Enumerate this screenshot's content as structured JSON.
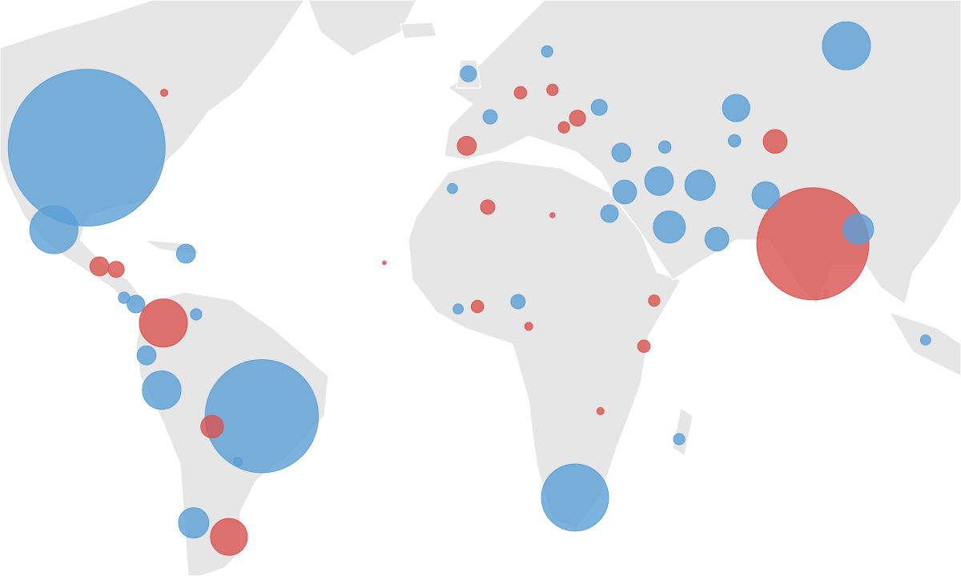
{
  "chart_data": {
    "type": "bubble-map",
    "series": [
      {
        "color": "#5b9fd6",
        "lon": [
          -98.0,
          -106.0,
          87.3,
          -55.3,
          21.1,
          -79.7,
          -71.9,
          -73.8,
          60.4,
          51.6,
          41.6,
          44.1,
          67.6,
          90.2,
          32.4,
          33.2,
          29.5,
          55.7,
          -83.4,
          -71.3,
          27.0,
          -4.9,
          0.4,
          -86.0,
          -88.9,
          46.5,
          7.2,
          -7.4,
          43.0,
          60.0,
          14.3,
          -8.8,
          106.6,
          -61.1
        ],
        "lat": [
          39.0,
          24.6,
          53.5,
          -13.2,
          -28.9,
          -7.9,
          -33.4,
          20.0,
          45.1,
          32.7,
          33.4,
          25.1,
          30.9,
          24.7,
          38.2,
          31.5,
          27.6,
          22.8,
          -0.7,
          7.8,
          45.2,
          49.9,
          43.8,
          9.9,
          11.2,
          -17.8,
          10.4,
          8.9,
          39.1,
          40.1,
          52.8,
          32.1,
          2.5,
          -22.2
        ],
        "values": [
          96,
          9,
          9,
          50,
          17.6,
          5.8,
          3.6,
          1.4,
          2.9,
          3.6,
          3.2,
          4,
          2.9,
          3.6,
          1.4,
          2.2,
          1.2,
          2.2,
          1.4,
          0.5,
          1,
          1,
          0.8,
          1.2,
          0.5,
          0.5,
          0.8,
          0.4,
          0.6,
          0.6,
          0.5,
          0.4,
          0.4,
          0.3
        ]
      },
      {
        "color": "#d9534f",
        "lon": [
          79.1,
          69.9,
          -79.3,
          -63.3,
          -94.9,
          -90.8,
          -5.3,
          -0.2,
          -67.4,
          37.9,
          40.4,
          -2.7,
          21.7,
          7.8,
          15.6,
          18.4,
          -79.1,
          -25.4,
          15.6,
          27.3,
          9.8
        ],
        "lat": [
          21.9,
          40.0,
          6.0,
          -35.8,
          17.5,
          16.9,
          39.3,
          28.8,
          -15.3,
          1.2,
          10.6,
          9.4,
          43.6,
          47.3,
          47.7,
          42.2,
          47.3,
          18.2,
          27.3,
          -12.2,
          5.3
        ],
        "values": [
          49,
          2.2,
          9,
          5.3,
          1.4,
          1,
          1.4,
          0.8,
          2,
          0.6,
          0.5,
          0.6,
          1,
          0.6,
          0.5,
          0.5,
          0.2,
          0.05,
          0.1,
          0.2,
          0.25
        ]
      }
    ]
  }
}
